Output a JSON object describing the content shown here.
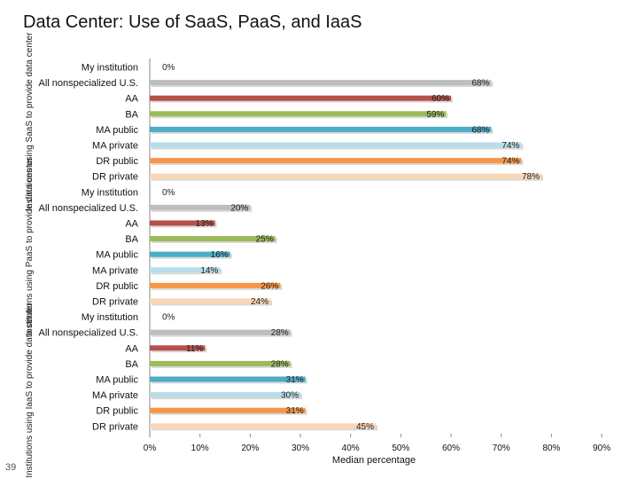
{
  "page": {
    "title": "Data Center: Use of SaaS, PaaS, and IaaS",
    "page_number": "39"
  },
  "chart_data": {
    "type": "bar",
    "orientation": "horizontal",
    "xlabel": "Median percentage",
    "xlim": [
      0,
      90
    ],
    "x_ticks": [
      "0%",
      "10%",
      "20%",
      "30%",
      "40%",
      "50%",
      "60%",
      "70%",
      "80%",
      "90%"
    ],
    "grid": false,
    "categories": [
      "My institution",
      "All nonspecialized U.S.",
      "AA",
      "BA",
      "MA public",
      "MA private",
      "DR public",
      "DR private"
    ],
    "colors": [
      "#c8c8c8",
      "#bdbdbd",
      "#b5504b",
      "#9bbb59",
      "#4bacc6",
      "#b7dde8",
      "#f79646",
      "#fbd5b5"
    ],
    "groups": [
      {
        "label": "Institutions using SaaS to provide data center",
        "values": [
          0,
          68,
          60,
          59,
          68,
          74,
          74,
          78
        ],
        "value_labels": [
          "0%",
          "68%",
          "60%",
          "59%",
          "68%",
          "74%",
          "74%",
          "78%"
        ]
      },
      {
        "label": "Institutions using PaaS to provide data center",
        "values": [
          0,
          20,
          13,
          25,
          16,
          14,
          26,
          24
        ],
        "value_labels": [
          "0%",
          "20%",
          "13%",
          "25%",
          "16%",
          "14%",
          "26%",
          "24%"
        ]
      },
      {
        "label": "Institutions using IaaS to provide data center",
        "values": [
          0,
          28,
          11,
          28,
          31,
          30,
          31,
          45
        ],
        "value_labels": [
          "0%",
          "28%",
          "11%",
          "28%",
          "31%",
          "30%",
          "31%",
          "45%"
        ]
      }
    ]
  }
}
